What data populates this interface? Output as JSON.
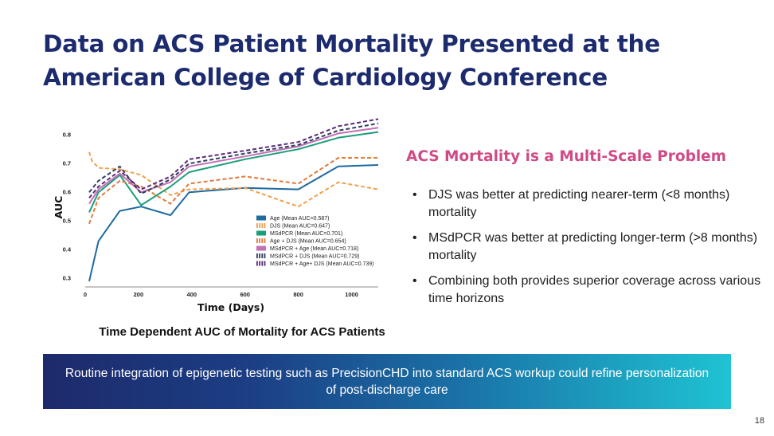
{
  "slide": {
    "title": "Data on ACS Patient Mortality Presented at the American College of Cardiology Conference",
    "page_number": "18"
  },
  "side_panel": {
    "heading": "ACS Mortality is a Multi-Scale Problem",
    "bullets": [
      "DJS was better at predicting nearer-term (<8 months) mortality",
      "MSdPCR was better at predicting longer-term (>8 months) mortality",
      "Combining both provides superior coverage across various time horizons"
    ]
  },
  "banner": {
    "text": "Routine integration of epigenetic testing such as PrecisionCHD into standard ACS workup could refine personalization of post-discharge care"
  },
  "chart_data": {
    "type": "line",
    "caption": "Time Dependent AUC of Mortality for ACS Patients",
    "xlabel": "Time (Days)",
    "ylabel": "AUC",
    "xlim": [
      0,
      1100
    ],
    "ylim": [
      0.27,
      0.87
    ],
    "xticks": [
      0,
      200,
      400,
      600,
      800,
      1000
    ],
    "yticks": [
      0.3,
      0.4,
      0.5,
      0.6,
      0.7,
      0.8
    ],
    "grid": false,
    "legend_position": "bottom-right",
    "series": [
      {
        "name": "Age (Mean AUC=0.587)",
        "color": "#1f6aa0",
        "dash": "solid",
        "x": [
          15,
          50,
          130,
          210,
          320,
          390,
          600,
          800,
          950,
          1100
        ],
        "y": [
          0.29,
          0.43,
          0.535,
          0.55,
          0.52,
          0.6,
          0.615,
          0.61,
          0.69,
          0.695
        ]
      },
      {
        "name": "DJS (Mean AUC=0.647)",
        "color": "#f0a04b",
        "dash": "dashed",
        "x": [
          15,
          25,
          50,
          130,
          210,
          320,
          390,
          600,
          800,
          950,
          1100
        ],
        "y": [
          0.74,
          0.71,
          0.685,
          0.68,
          0.66,
          0.59,
          0.61,
          0.615,
          0.55,
          0.635,
          0.61
        ]
      },
      {
        "name": "MSdPCR (Mean AUC=0.701)",
        "color": "#1a9e7a",
        "dash": "solid",
        "x": [
          15,
          50,
          130,
          210,
          320,
          390,
          600,
          800,
          950,
          1100
        ],
        "y": [
          0.53,
          0.6,
          0.66,
          0.555,
          0.62,
          0.67,
          0.715,
          0.75,
          0.79,
          0.81
        ]
      },
      {
        "name": "Age + DJS (Mean AUC=0.654)",
        "color": "#e07a3a",
        "dash": "dashed",
        "x": [
          15,
          50,
          130,
          210,
          320,
          390,
          600,
          800,
          950,
          1100
        ],
        "y": [
          0.49,
          0.58,
          0.64,
          0.62,
          0.56,
          0.63,
          0.655,
          0.63,
          0.72,
          0.72
        ]
      },
      {
        "name": "MSdPCR + Age (Mean AUC=0.718)",
        "color": "#c46fb8",
        "dash": "solid",
        "x": [
          15,
          50,
          130,
          210,
          320,
          390,
          600,
          800,
          950,
          1100
        ],
        "y": [
          0.56,
          0.61,
          0.665,
          0.6,
          0.635,
          0.69,
          0.725,
          0.76,
          0.805,
          0.825
        ]
      },
      {
        "name": "MSdPCR + DJS (Mean AUC=0.729)",
        "color": "#2e3f5e",
        "dash": "dashed",
        "x": [
          15,
          50,
          130,
          210,
          320,
          390,
          600,
          800,
          950,
          1100
        ],
        "y": [
          0.6,
          0.64,
          0.69,
          0.595,
          0.645,
          0.7,
          0.735,
          0.765,
          0.815,
          0.84
        ]
      },
      {
        "name": "MSdPCR + Age+ DJS (Mean AUC=0.739)",
        "color": "#5a2a7a",
        "dash": "dashed",
        "x": [
          15,
          50,
          130,
          210,
          320,
          390,
          600,
          800,
          950,
          1100
        ],
        "y": [
          0.58,
          0.62,
          0.675,
          0.61,
          0.655,
          0.715,
          0.745,
          0.775,
          0.83,
          0.855
        ]
      }
    ]
  }
}
